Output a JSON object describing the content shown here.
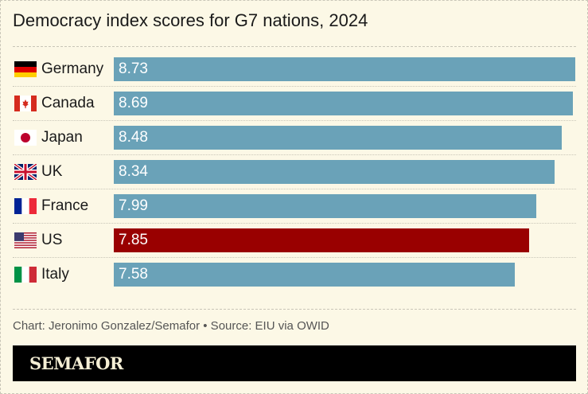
{
  "chart_data": {
    "type": "bar",
    "orientation": "horizontal",
    "title": "Democracy index scores for G7 nations, 2024",
    "categories": [
      "Germany",
      "Canada",
      "Japan",
      "UK",
      "France",
      "US",
      "Italy"
    ],
    "flags": [
      "germany-flag",
      "canada-flag",
      "japan-flag",
      "uk-flag",
      "france-flag",
      "us-flag",
      "italy-flag"
    ],
    "values": [
      8.73,
      8.69,
      8.48,
      8.34,
      7.99,
      7.85,
      7.58
    ],
    "value_labels": [
      "8.73",
      "8.69",
      "8.48",
      "8.34",
      "7.99",
      "7.85",
      "7.58"
    ],
    "xlim": [
      0,
      8.73
    ],
    "grid": false,
    "colors": {
      "default": "#6aa2b8",
      "highlight": "#990000",
      "highlight_category": "US"
    }
  },
  "footer": {
    "source": "Chart: Jeronimo Gonzalez/Semafor • Source: EIU via OWID",
    "logo": "SEMAFOR"
  }
}
